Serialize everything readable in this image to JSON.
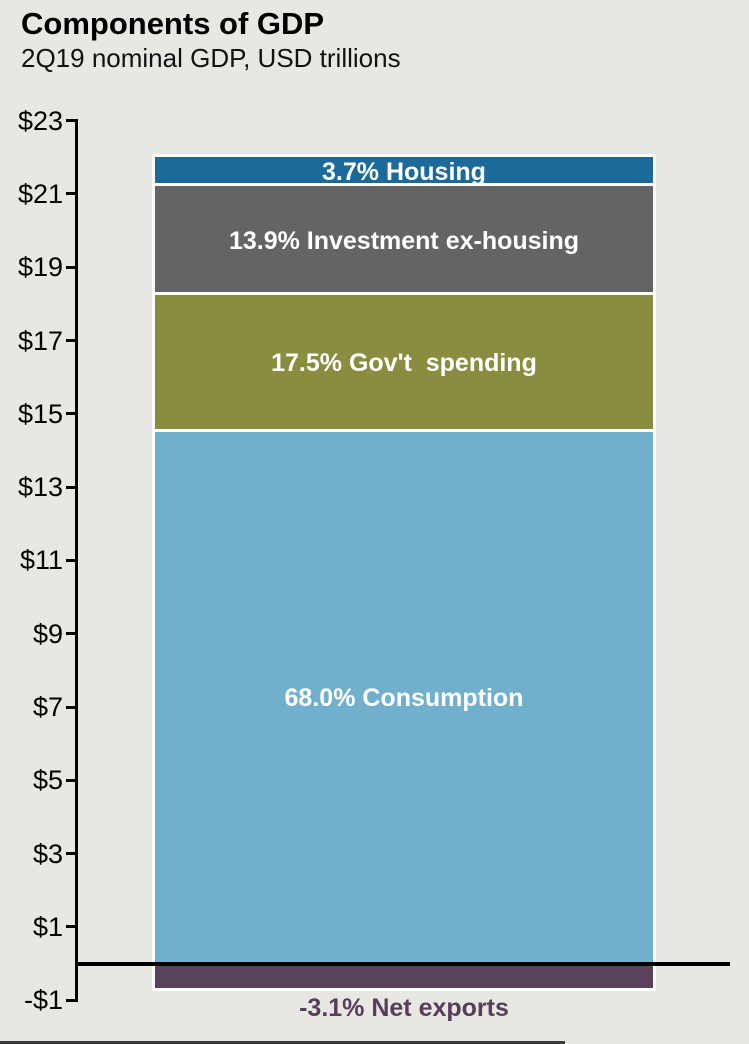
{
  "page": {
    "background": "#e8e7e4",
    "bottom_edge_color": "#3a3a3a"
  },
  "chart_data": {
    "type": "bar",
    "stacked": true,
    "title": "Components of GDP",
    "subtitle": "2Q19 nominal GDP, USD trillions",
    "unit": "USD trillions",
    "grid": false,
    "legend": "none (labels inside segments)",
    "y_axis": {
      "min": -1,
      "max": 23,
      "tick_step": 2,
      "ticks": [
        {
          "label": "$23",
          "value": 23
        },
        {
          "label": "$21",
          "value": 21
        },
        {
          "label": "$19",
          "value": 19
        },
        {
          "label": "$17",
          "value": 17
        },
        {
          "label": "$15",
          "value": 15
        },
        {
          "label": "$13",
          "value": 13
        },
        {
          "label": "$11",
          "value": 11
        },
        {
          "label": "$9",
          "value": 9
        },
        {
          "label": "$7",
          "value": 7
        },
        {
          "label": "$5",
          "value": 5
        },
        {
          "label": "$3",
          "value": 3
        },
        {
          "label": "$1",
          "value": 1
        },
        {
          "label": "-$1",
          "value": -1
        }
      ]
    },
    "segments": [
      {
        "name": "housing",
        "label": "3.7% Housing",
        "percent": 3.7,
        "from": 21.21,
        "to": 22.0,
        "color": "#1b6a9a",
        "label_color": "#ffffff",
        "label_position": "inside"
      },
      {
        "name": "investment-ex-housing",
        "label": "13.9% Investment ex-housing",
        "percent": 13.9,
        "from": 18.24,
        "to": 21.21,
        "color": "#646464",
        "label_color": "#ffffff",
        "label_position": "inside"
      },
      {
        "name": "govt-spending",
        "label": "17.5% Gov't  spending",
        "percent": 17.5,
        "from": 14.51,
        "to": 18.24,
        "color": "#8a8d3f",
        "label_color": "#ffffff",
        "label_position": "inside"
      },
      {
        "name": "consumption",
        "label": "68.0% Consumption",
        "percent": 68.0,
        "from": 0,
        "to": 14.51,
        "color": "#70b0cd",
        "label_color": "#ffffff",
        "label_position": "inside"
      },
      {
        "name": "net-exports",
        "label": "-3.1% Net exports",
        "percent": -3.1,
        "from": -0.66,
        "to": 0,
        "color": "#5a415c",
        "label_color": "#563e59",
        "label_position": "below"
      }
    ]
  }
}
